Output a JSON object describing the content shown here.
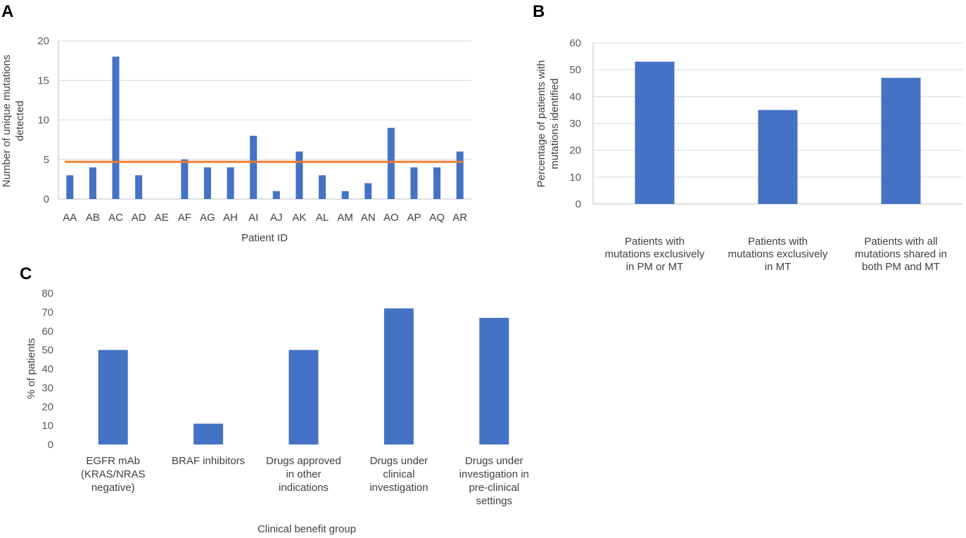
{
  "colors": {
    "bar": "#4472c4",
    "mean_line": "#ed7d31"
  },
  "chart_data": [
    {
      "panel": "A",
      "type": "bar",
      "title": "",
      "xlabel": "Patient ID",
      "ylabel": "Number of unique mutations detected",
      "ylabel_lines": [
        "Number of unique mutations",
        "detected"
      ],
      "ylim": [
        0,
        20
      ],
      "yticks": [
        0,
        5,
        10,
        15,
        20
      ],
      "grid": true,
      "categories": [
        "AA",
        "AB",
        "AC",
        "AD",
        "AE",
        "AF",
        "AG",
        "AH",
        "AI",
        "AJ",
        "AK",
        "AL",
        "AM",
        "AN",
        "AO",
        "AP",
        "AQ",
        "AR"
      ],
      "values": [
        3,
        4,
        18,
        3,
        0,
        5,
        4,
        4,
        8,
        1,
        6,
        3,
        1,
        2,
        9,
        4,
        4,
        6
      ],
      "reference_line": {
        "y": 4.7,
        "color": "#ed7d31"
      }
    },
    {
      "panel": "B",
      "type": "bar",
      "title": "",
      "xlabel": "",
      "ylabel": "Percentage of patients with mutations identified",
      "ylabel_lines": [
        "Percentage of patients with",
        "mutations identified"
      ],
      "ylim": [
        0,
        60
      ],
      "yticks": [
        0,
        10,
        20,
        30,
        40,
        50,
        60
      ],
      "grid": true,
      "categories": [
        [
          "Patients with",
          "mutations exclusively",
          "in PM or MT"
        ],
        [
          "Patients with",
          "mutations exclusively",
          "in MT"
        ],
        [
          "Patients with all",
          "mutations shared in",
          "both PM and MT"
        ]
      ],
      "values": [
        53,
        35,
        47
      ]
    },
    {
      "panel": "C",
      "type": "bar",
      "title": "",
      "xlabel": "Clinical benefit group",
      "ylabel": "% of patients",
      "ylim": [
        0,
        80
      ],
      "yticks": [
        0,
        10,
        20,
        30,
        40,
        50,
        60,
        70,
        80
      ],
      "grid": false,
      "categories": [
        [
          "EGFR mAb",
          "(KRAS/NRAS",
          "negative)"
        ],
        [
          "BRAF inhibitors"
        ],
        [
          "Drugs approved",
          "in other",
          "indications"
        ],
        [
          "Drugs under",
          "clinical",
          "investigation"
        ],
        [
          "Drugs under",
          "investigation in",
          "pre-clinical",
          "settings"
        ]
      ],
      "values": [
        50,
        11,
        50,
        72,
        67
      ]
    }
  ]
}
